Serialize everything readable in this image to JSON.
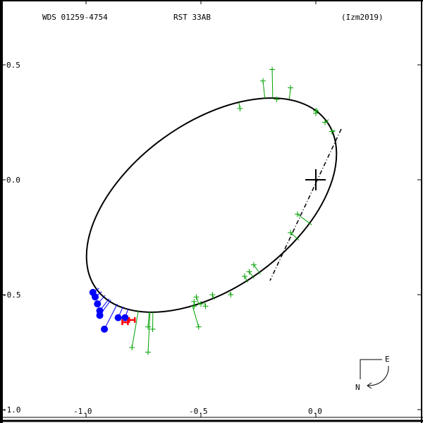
{
  "header": {
    "wds_id": "WDS 01259-4754",
    "discoverer": "RST  33AB",
    "reference": "(Izm2019)"
  },
  "orientation": {
    "east_label": "E",
    "north_label": "N"
  },
  "colors": {
    "orbit": "#000000",
    "micrometer_obs": "#00a000",
    "speckle_obs": "#0000ff",
    "interferometric_obs": "#ff0000",
    "frame": "#000000"
  },
  "chart_data": {
    "type": "scatter",
    "title": "WDS 01259-4754  RST  33AB  (Izm2019)",
    "xlabel": "",
    "ylabel": "",
    "xlim": [
      -1.0,
      0.45
    ],
    "ylim": [
      -1.0,
      0.7
    ],
    "x_ticks": [
      "-1.0",
      "-0.5",
      "0.0"
    ],
    "y_ticks": [
      "0.5",
      "0.0",
      "-0.5",
      "-1.0"
    ],
    "left_bottom_corner_label": "-1.0",
    "grid": false,
    "legend": "none",
    "orbit_ellipse": {
      "center": [
        -0.44,
        -0.11
      ],
      "semi_major": 0.62,
      "semi_minor": 0.36,
      "rotation_deg": 36,
      "primary_star": [
        0.0,
        0.0
      ],
      "line_of_nodes": [
        [
          0.11,
          0.22
        ],
        [
          -0.2,
          -0.44
        ]
      ]
    },
    "series": [
      {
        "name": "micrometer observations (green +)",
        "points": [
          [
            -0.33,
            0.31
          ],
          [
            -0.19,
            0.48
          ],
          [
            -0.23,
            0.43
          ],
          [
            -0.17,
            0.35
          ],
          [
            -0.11,
            0.4
          ],
          [
            -0.0,
            0.3
          ],
          [
            -0.0,
            0.29
          ],
          [
            0.04,
            0.25
          ],
          [
            0.07,
            0.21
          ],
          [
            -0.08,
            -0.15
          ],
          [
            -0.11,
            -0.23
          ],
          [
            -0.27,
            -0.37
          ],
          [
            -0.29,
            -0.4
          ],
          [
            -0.31,
            -0.42
          ],
          [
            -0.37,
            -0.5
          ],
          [
            -0.45,
            -0.5
          ],
          [
            -0.52,
            -0.51
          ],
          [
            -0.53,
            -0.53
          ],
          [
            -0.53,
            -0.55
          ],
          [
            -0.5,
            -0.54
          ],
          [
            -0.48,
            -0.55
          ],
          [
            -0.51,
            -0.64
          ],
          [
            -0.71,
            -0.65
          ],
          [
            -0.73,
            -0.64
          ],
          [
            -0.8,
            -0.73
          ],
          [
            -0.73,
            -0.75
          ]
        ]
      },
      {
        "name": "speckle observations (blue dots)",
        "points": [
          [
            -0.97,
            -0.49
          ],
          [
            -0.96,
            -0.51
          ],
          [
            -0.95,
            -0.54
          ],
          [
            -0.94,
            -0.57
          ],
          [
            -0.94,
            -0.59
          ],
          [
            -0.86,
            -0.6
          ],
          [
            -0.83,
            -0.6
          ],
          [
            -0.92,
            -0.65
          ]
        ]
      },
      {
        "name": "interferometric observations (red H)",
        "points": [
          [
            -0.83,
            -0.62
          ],
          [
            -0.8,
            -0.61
          ]
        ]
      }
    ]
  }
}
